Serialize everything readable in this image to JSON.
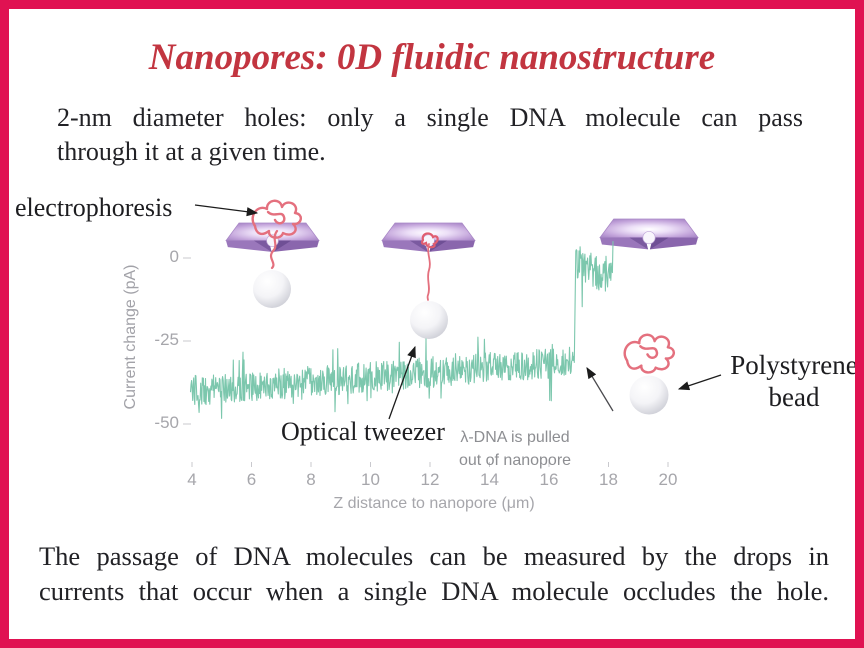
{
  "slide": {
    "title": "Nanopores: 0D fluidic nanostructure",
    "title_color": "#c23540",
    "border_color": "#e01252",
    "paragraph_top_lines": [
      "2-nm diameter holes: only a single DNA molecule can pass",
      "through it at a given time."
    ],
    "paragraph_bottom_lines": [
      "The passage of DNA molecules can be measured by the drops in",
      "currents that occur when a single DNA molecule occludes the hole."
    ]
  },
  "figure": {
    "electrophoresis_label": "electrophoresis",
    "optical_tweezer_label": "Optical tweezer",
    "lambda_note_lines": [
      "λ-DNA is pulled",
      "out of nanopore"
    ],
    "polystyrene_label_lines": [
      "Polystyrene",
      "bead"
    ],
    "graphics": {
      "membrane_color": "#b393cf",
      "dna_color": "#e4707e",
      "bead_color": "#eceef2",
      "arrow_color": "#1c1c1c"
    }
  },
  "chart_data": {
    "type": "line",
    "title": "",
    "xlabel": "Z distance to nanopore (μm)",
    "ylabel": "Current change (pA)",
    "xticks": [
      4,
      6,
      8,
      10,
      12,
      14,
      16,
      18,
      20
    ],
    "yticks": [
      0,
      -25,
      -50
    ],
    "xlim": [
      3.8,
      20.5
    ],
    "ylim": [
      -58,
      12
    ],
    "grid": false,
    "legend": "none",
    "series": [
      {
        "name": "current_trace",
        "color": "#7cc7ad",
        "segments": [
          {
            "x0": 3.95,
            "x1": 16.85,
            "y0": -40,
            "y1": -31,
            "noise": 6.2
          },
          {
            "x0": 16.9,
            "x1": 18.15,
            "y0": -3,
            "y1": -5,
            "noise": 7.5
          }
        ],
        "description": "Noisy blockade current around -40 to -31 pA that jumps abruptly to ~0 pA near 17 μm when the λ-DNA is pulled out of the nanopore"
      }
    ]
  }
}
